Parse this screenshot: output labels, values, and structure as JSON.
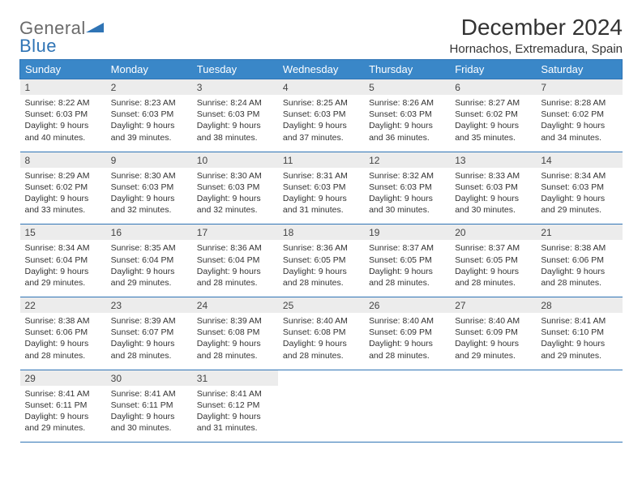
{
  "brand": {
    "general": "General",
    "blue": "Blue"
  },
  "title": "December 2024",
  "location": "Hornachos, Extremadura, Spain",
  "colors": {
    "header_bg": "#3a87c8",
    "border": "#2f74b5",
    "daynum_bg": "#ececec",
    "text": "#333333",
    "logo_gray": "#6b6b6b",
    "logo_blue": "#2f74b5"
  },
  "fonts": {
    "title_pt": 28,
    "location_pt": 15,
    "dayheader_pt": 13,
    "daynum_pt": 12,
    "body_pt": 10.5
  },
  "day_headers": [
    "Sunday",
    "Monday",
    "Tuesday",
    "Wednesday",
    "Thursday",
    "Friday",
    "Saturday"
  ],
  "weeks": [
    [
      {
        "n": "1",
        "sr": "Sunrise: 8:22 AM",
        "ss": "Sunset: 6:03 PM",
        "d1": "Daylight: 9 hours",
        "d2": "and 40 minutes."
      },
      {
        "n": "2",
        "sr": "Sunrise: 8:23 AM",
        "ss": "Sunset: 6:03 PM",
        "d1": "Daylight: 9 hours",
        "d2": "and 39 minutes."
      },
      {
        "n": "3",
        "sr": "Sunrise: 8:24 AM",
        "ss": "Sunset: 6:03 PM",
        "d1": "Daylight: 9 hours",
        "d2": "and 38 minutes."
      },
      {
        "n": "4",
        "sr": "Sunrise: 8:25 AM",
        "ss": "Sunset: 6:03 PM",
        "d1": "Daylight: 9 hours",
        "d2": "and 37 minutes."
      },
      {
        "n": "5",
        "sr": "Sunrise: 8:26 AM",
        "ss": "Sunset: 6:03 PM",
        "d1": "Daylight: 9 hours",
        "d2": "and 36 minutes."
      },
      {
        "n": "6",
        "sr": "Sunrise: 8:27 AM",
        "ss": "Sunset: 6:02 PM",
        "d1": "Daylight: 9 hours",
        "d2": "and 35 minutes."
      },
      {
        "n": "7",
        "sr": "Sunrise: 8:28 AM",
        "ss": "Sunset: 6:02 PM",
        "d1": "Daylight: 9 hours",
        "d2": "and 34 minutes."
      }
    ],
    [
      {
        "n": "8",
        "sr": "Sunrise: 8:29 AM",
        "ss": "Sunset: 6:02 PM",
        "d1": "Daylight: 9 hours",
        "d2": "and 33 minutes."
      },
      {
        "n": "9",
        "sr": "Sunrise: 8:30 AM",
        "ss": "Sunset: 6:03 PM",
        "d1": "Daylight: 9 hours",
        "d2": "and 32 minutes."
      },
      {
        "n": "10",
        "sr": "Sunrise: 8:30 AM",
        "ss": "Sunset: 6:03 PM",
        "d1": "Daylight: 9 hours",
        "d2": "and 32 minutes."
      },
      {
        "n": "11",
        "sr": "Sunrise: 8:31 AM",
        "ss": "Sunset: 6:03 PM",
        "d1": "Daylight: 9 hours",
        "d2": "and 31 minutes."
      },
      {
        "n": "12",
        "sr": "Sunrise: 8:32 AM",
        "ss": "Sunset: 6:03 PM",
        "d1": "Daylight: 9 hours",
        "d2": "and 30 minutes."
      },
      {
        "n": "13",
        "sr": "Sunrise: 8:33 AM",
        "ss": "Sunset: 6:03 PM",
        "d1": "Daylight: 9 hours",
        "d2": "and 30 minutes."
      },
      {
        "n": "14",
        "sr": "Sunrise: 8:34 AM",
        "ss": "Sunset: 6:03 PM",
        "d1": "Daylight: 9 hours",
        "d2": "and 29 minutes."
      }
    ],
    [
      {
        "n": "15",
        "sr": "Sunrise: 8:34 AM",
        "ss": "Sunset: 6:04 PM",
        "d1": "Daylight: 9 hours",
        "d2": "and 29 minutes."
      },
      {
        "n": "16",
        "sr": "Sunrise: 8:35 AM",
        "ss": "Sunset: 6:04 PM",
        "d1": "Daylight: 9 hours",
        "d2": "and 29 minutes."
      },
      {
        "n": "17",
        "sr": "Sunrise: 8:36 AM",
        "ss": "Sunset: 6:04 PM",
        "d1": "Daylight: 9 hours",
        "d2": "and 28 minutes."
      },
      {
        "n": "18",
        "sr": "Sunrise: 8:36 AM",
        "ss": "Sunset: 6:05 PM",
        "d1": "Daylight: 9 hours",
        "d2": "and 28 minutes."
      },
      {
        "n": "19",
        "sr": "Sunrise: 8:37 AM",
        "ss": "Sunset: 6:05 PM",
        "d1": "Daylight: 9 hours",
        "d2": "and 28 minutes."
      },
      {
        "n": "20",
        "sr": "Sunrise: 8:37 AM",
        "ss": "Sunset: 6:05 PM",
        "d1": "Daylight: 9 hours",
        "d2": "and 28 minutes."
      },
      {
        "n": "21",
        "sr": "Sunrise: 8:38 AM",
        "ss": "Sunset: 6:06 PM",
        "d1": "Daylight: 9 hours",
        "d2": "and 28 minutes."
      }
    ],
    [
      {
        "n": "22",
        "sr": "Sunrise: 8:38 AM",
        "ss": "Sunset: 6:06 PM",
        "d1": "Daylight: 9 hours",
        "d2": "and 28 minutes."
      },
      {
        "n": "23",
        "sr": "Sunrise: 8:39 AM",
        "ss": "Sunset: 6:07 PM",
        "d1": "Daylight: 9 hours",
        "d2": "and 28 minutes."
      },
      {
        "n": "24",
        "sr": "Sunrise: 8:39 AM",
        "ss": "Sunset: 6:08 PM",
        "d1": "Daylight: 9 hours",
        "d2": "and 28 minutes."
      },
      {
        "n": "25",
        "sr": "Sunrise: 8:40 AM",
        "ss": "Sunset: 6:08 PM",
        "d1": "Daylight: 9 hours",
        "d2": "and 28 minutes."
      },
      {
        "n": "26",
        "sr": "Sunrise: 8:40 AM",
        "ss": "Sunset: 6:09 PM",
        "d1": "Daylight: 9 hours",
        "d2": "and 28 minutes."
      },
      {
        "n": "27",
        "sr": "Sunrise: 8:40 AM",
        "ss": "Sunset: 6:09 PM",
        "d1": "Daylight: 9 hours",
        "d2": "and 29 minutes."
      },
      {
        "n": "28",
        "sr": "Sunrise: 8:41 AM",
        "ss": "Sunset: 6:10 PM",
        "d1": "Daylight: 9 hours",
        "d2": "and 29 minutes."
      }
    ],
    [
      {
        "n": "29",
        "sr": "Sunrise: 8:41 AM",
        "ss": "Sunset: 6:11 PM",
        "d1": "Daylight: 9 hours",
        "d2": "and 29 minutes."
      },
      {
        "n": "30",
        "sr": "Sunrise: 8:41 AM",
        "ss": "Sunset: 6:11 PM",
        "d1": "Daylight: 9 hours",
        "d2": "and 30 minutes."
      },
      {
        "n": "31",
        "sr": "Sunrise: 8:41 AM",
        "ss": "Sunset: 6:12 PM",
        "d1": "Daylight: 9 hours",
        "d2": "and 31 minutes."
      },
      null,
      null,
      null,
      null
    ]
  ]
}
